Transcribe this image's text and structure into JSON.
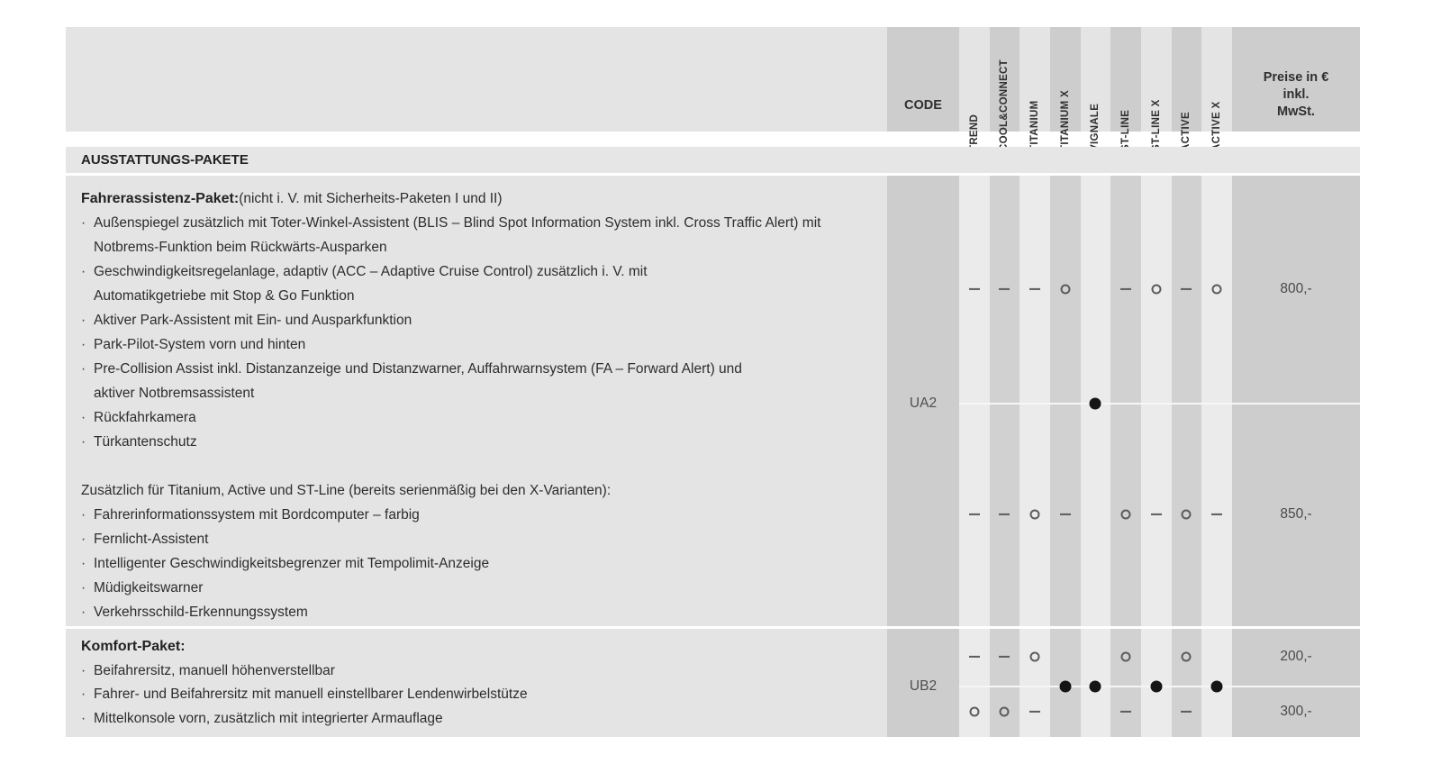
{
  "table": {
    "bullet_char": "·",
    "header": {
      "code_label": "CODE",
      "trims": [
        "TREND",
        "COOL&CONNECT",
        "TITANIUM",
        "TITANIUM X",
        "VIGNALE",
        "ST-LINE",
        "ST-LINE X",
        "ACTIVE",
        "ACTIVE X"
      ],
      "price_label_lines": [
        "Preise in €",
        "inkl.",
        "MwSt."
      ]
    },
    "section_title": "AUSSTATTUNGS-PAKETE",
    "colors": {
      "body_base": "#e4e4e4",
      "band_dark": "#d1d1d1",
      "band_light": "#ebebeb",
      "code_price_column": "#cdcdcd",
      "header_dark_cell": "#cdcdcd"
    },
    "packages": [
      {
        "code": "UA2",
        "text_lines": [
          {
            "bold": "Fahrerassistenz-Paket:",
            "text": " (nicht i. V. mit Sicherheits-Paketen I und II)"
          },
          {
            "marker": true,
            "text": "Außenspiegel zusätzlich mit Toter-Winkel-Assistent (BLIS – Blind Spot Information System inkl. Cross Traffic Alert) mit"
          },
          {
            "indent": true,
            "text": "Notbrems-Funktion beim Rückwärts-Ausparken"
          },
          {
            "marker": true,
            "text": "Geschwindigkeitsregelanlage, adaptiv (ACC – Adaptive Cruise Control) zusätzlich i. V. mit"
          },
          {
            "indent": true,
            "text": "Automatikgetriebe mit Stop & Go Funktion"
          },
          {
            "marker": true,
            "text": "Aktiver Park-Assistent mit Ein- und Ausparkfunktion"
          },
          {
            "marker": true,
            "text": "Park-Pilot-System vorn und hinten"
          },
          {
            "marker": true,
            "text": "Pre-Collision Assist inkl. Distanzanzeige und Distanzwarner, Auffahrwarnsystem (FA – Forward Alert) und"
          },
          {
            "indent": true,
            "text": "aktiver Notbremsassistent"
          },
          {
            "marker": true,
            "text": "Rückfahrkamera"
          },
          {
            "marker": true,
            "text": "Türkantenschutz"
          },
          {
            "text": ""
          },
          {
            "text": "Zusätzlich für Titanium, Active und ST-Line (bereits serienmäßig bei den X-Varianten):"
          },
          {
            "marker": true,
            "text": "Fahrerinformationssystem mit Bordcomputer – farbig"
          },
          {
            "marker": true,
            "text": "Fernlicht-Assistent"
          },
          {
            "marker": true,
            "text": "Intelligenter Geschwindigkeitsbegrenzer mit Tempolimit-Anzeige"
          },
          {
            "marker": true,
            "text": "Müdigkeitswarner"
          },
          {
            "marker": true,
            "text": "Verkehrsschild-Erkennungssystem"
          }
        ],
        "sub_rows": [
          {
            "marks": [
              "–",
              "–",
              "–",
              "○",
              "",
              "–",
              "○",
              "–",
              "○"
            ],
            "price": "800,-"
          },
          {
            "marks": [
              "–",
              "–",
              "○",
              "–",
              "",
              "○",
              "–",
              "○",
              "–"
            ],
            "price": "850,-"
          }
        ],
        "mid_marks": [
          "",
          "",
          "",
          "",
          "●",
          "",
          "",
          "",
          ""
        ]
      },
      {
        "code": "UB2",
        "text_lines": [
          {
            "bold": "Komfort-Paket:",
            "text": ""
          },
          {
            "marker": true,
            "text": "Beifahrersitz, manuell höhenverstellbar"
          },
          {
            "marker": true,
            "text": "Fahrer- und Beifahrersitz mit manuell einstellbarer Lendenwirbelstütze"
          },
          {
            "marker": true,
            "text": "Mittelkonsole vorn, zusätzlich mit integrierter Armauflage"
          }
        ],
        "sub_rows": [
          {
            "marks": [
              "–",
              "–",
              "○",
              "",
              "",
              "○",
              "",
              "○",
              ""
            ],
            "price": "200,-"
          },
          {
            "marks": [
              "○",
              "○",
              "–",
              "",
              "",
              "–",
              "",
              "–",
              ""
            ],
            "price": "300,-"
          }
        ],
        "mid_marks": [
          "",
          "",
          "",
          "●",
          "●",
          "",
          "●",
          "",
          "●"
        ]
      }
    ]
  }
}
